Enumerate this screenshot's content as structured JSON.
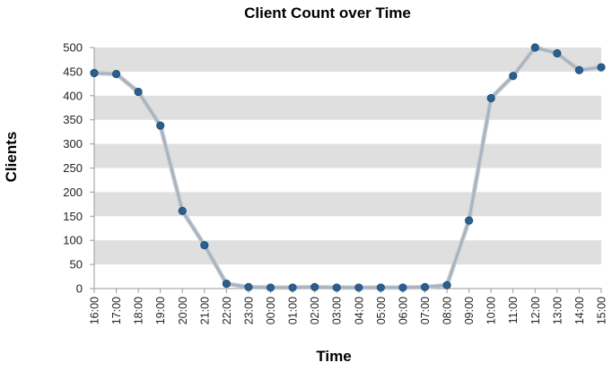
{
  "chart_data": {
    "type": "line",
    "title": "Client Count over Time",
    "xlabel": "Time",
    "ylabel": "Clients",
    "ylim": [
      0,
      500
    ],
    "y_ticks": [
      0,
      50,
      100,
      150,
      200,
      250,
      300,
      350,
      400,
      450,
      500
    ],
    "grid": "alternating horizontal bands",
    "legend": "none",
    "x": [
      "16:00",
      "17:00",
      "18:00",
      "19:00",
      "20:00",
      "21:00",
      "22:00",
      "23:00",
      "00:00",
      "01:00",
      "02:00",
      "03:00",
      "04:00",
      "05:00",
      "06:00",
      "07:00",
      "08:00",
      "09:00",
      "10:00",
      "11:00",
      "12:00",
      "13:00",
      "14:00",
      "15:00"
    ],
    "series": [
      {
        "values": [
          447,
          445,
          408,
          338,
          161,
          90,
          10,
          3,
          2,
          2,
          3,
          2,
          2,
          2,
          2,
          3,
          7,
          141,
          395,
          441,
          500,
          488,
          453,
          459
        ]
      }
    ],
    "colors": {
      "line": "#a6b2bd",
      "marker": "#2a5f8f",
      "band": "#dfdfdf"
    }
  }
}
